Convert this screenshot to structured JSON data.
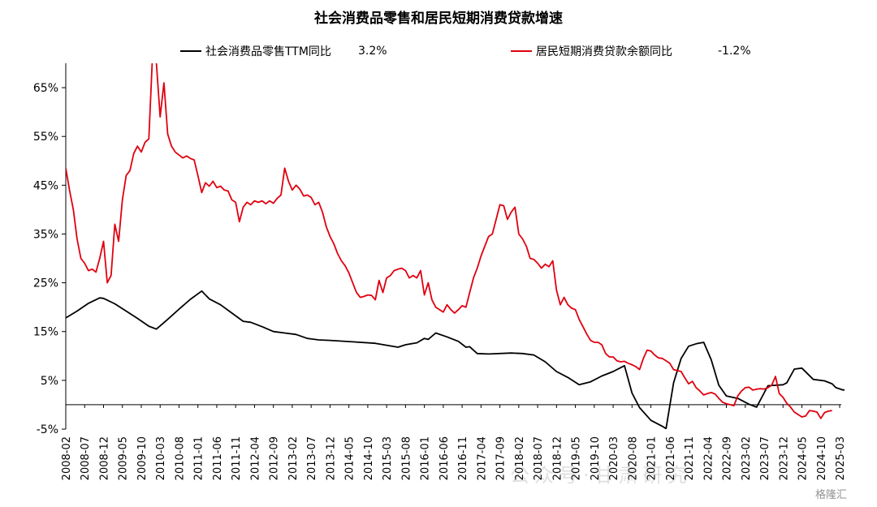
{
  "chart_data": {
    "type": "line",
    "title": "社会消费品零售和居民短期消费贷款增速",
    "ylim": [
      -5,
      70
    ],
    "y_ticks": [
      "-5%",
      "5%",
      "15%",
      "25%",
      "35%",
      "45%",
      "55%",
      "65%"
    ],
    "y_tick_values": [
      -5,
      5,
      15,
      25,
      35,
      45,
      55,
      65
    ],
    "x_ticks": [
      "2008-02",
      "2008-07",
      "2008-12",
      "2009-05",
      "2009-10",
      "2010-03",
      "2010-08",
      "2011-01",
      "2011-06",
      "2011-11",
      "2012-04",
      "2012-09",
      "2013-02",
      "2013-07",
      "2013-12",
      "2014-05",
      "2014-10",
      "2015-03",
      "2015-08",
      "2016-01",
      "2016-06",
      "2016-11",
      "2017-04",
      "2017-09",
      "2018-02",
      "2018-07",
      "2018-12",
      "2019-05",
      "2019-10",
      "2020-03",
      "2020-08",
      "2021-01",
      "2021-06",
      "2021-11",
      "2022-04",
      "2022-09",
      "2023-02",
      "2023-07",
      "2023-12",
      "2024-05",
      "2024-10",
      "2025-03"
    ],
    "x_start": "2008-02",
    "x_end": "2025-03",
    "legend_position": "top",
    "series": [
      {
        "name": "社会消费品零售TTM同比",
        "color": "#000000",
        "latest_label": "3.2%",
        "points": [
          [
            "2008-02",
            17.8
          ],
          [
            "2008-05",
            19.2
          ],
          [
            "2008-08",
            20.8
          ],
          [
            "2008-11",
            21.9
          ],
          [
            "2008-12",
            21.8
          ],
          [
            "2009-03",
            20.7
          ],
          [
            "2009-06",
            19.2
          ],
          [
            "2009-09",
            17.7
          ],
          [
            "2009-12",
            16.1
          ],
          [
            "2010-02",
            15.5
          ],
          [
            "2010-05",
            17.5
          ],
          [
            "2010-08",
            19.6
          ],
          [
            "2010-11",
            21.6
          ],
          [
            "2011-02",
            23.3
          ],
          [
            "2011-04",
            21.7
          ],
          [
            "2011-07",
            20.5
          ],
          [
            "2011-10",
            18.8
          ],
          [
            "2012-01",
            17.1
          ],
          [
            "2012-03",
            16.9
          ],
          [
            "2012-06",
            16.0
          ],
          [
            "2012-09",
            15.0
          ],
          [
            "2012-12",
            14.7
          ],
          [
            "2013-03",
            14.4
          ],
          [
            "2013-06",
            13.6
          ],
          [
            "2013-09",
            13.3
          ],
          [
            "2013-12",
            13.2
          ],
          [
            "2014-06",
            12.9
          ],
          [
            "2014-12",
            12.6
          ],
          [
            "2015-06",
            11.8
          ],
          [
            "2015-08",
            12.3
          ],
          [
            "2015-11",
            12.7
          ],
          [
            "2016-01",
            13.6
          ],
          [
            "2016-02",
            13.4
          ],
          [
            "2016-04",
            14.7
          ],
          [
            "2016-07",
            13.9
          ],
          [
            "2016-10",
            13.0
          ],
          [
            "2016-12",
            11.8
          ],
          [
            "2017-01",
            11.9
          ],
          [
            "2017-03",
            10.5
          ],
          [
            "2017-06",
            10.4
          ],
          [
            "2017-12",
            10.6
          ],
          [
            "2018-03",
            10.5
          ],
          [
            "2018-06",
            10.2
          ],
          [
            "2018-09",
            8.8
          ],
          [
            "2018-12",
            6.8
          ],
          [
            "2019-03",
            5.6
          ],
          [
            "2019-06",
            4.1
          ],
          [
            "2019-09",
            4.7
          ],
          [
            "2019-12",
            5.9
          ],
          [
            "2020-03",
            6.8
          ],
          [
            "2020-06",
            8.0
          ],
          [
            "2020-08",
            2.4
          ],
          [
            "2020-10",
            -0.6
          ],
          [
            "2021-01",
            -3.2
          ],
          [
            "2021-04",
            -4.4
          ],
          [
            "2021-05",
            -4.9
          ],
          [
            "2021-07",
            4.5
          ],
          [
            "2021-09",
            9.5
          ],
          [
            "2021-11",
            12.0
          ],
          [
            "2022-01",
            12.5
          ],
          [
            "2022-03",
            12.8
          ],
          [
            "2022-05",
            9.2
          ],
          [
            "2022-07",
            4.0
          ],
          [
            "2022-09",
            1.8
          ],
          [
            "2022-12",
            1.3
          ],
          [
            "2023-03",
            0.1
          ],
          [
            "2023-05",
            -0.5
          ],
          [
            "2023-08",
            3.9
          ],
          [
            "2023-12",
            4.1
          ],
          [
            "2024-01",
            4.5
          ],
          [
            "2024-03",
            7.3
          ],
          [
            "2024-05",
            7.5
          ],
          [
            "2024-08",
            5.2
          ],
          [
            "2024-11",
            4.9
          ],
          [
            "2025-01",
            4.3
          ],
          [
            "2025-02",
            3.5
          ],
          [
            "2025-04",
            3.0
          ],
          [
            "2025-05",
            3.2
          ]
        ]
      },
      {
        "name": "居民短期消费贷款余额同比",
        "color": "#e0000f",
        "latest_label": "-1.2%",
        "points": [
          [
            "2008-02",
            48.5
          ],
          [
            "2008-03",
            44.0
          ],
          [
            "2008-04",
            40.0
          ],
          [
            "2008-05",
            34.0
          ],
          [
            "2008-06",
            30.0
          ],
          [
            "2008-07",
            29.0
          ],
          [
            "2008-08",
            27.5
          ],
          [
            "2008-09",
            27.8
          ],
          [
            "2008-10",
            27.2
          ],
          [
            "2008-11",
            30.0
          ],
          [
            "2008-12",
            33.5
          ],
          [
            "2009-01",
            25.0
          ],
          [
            "2009-02",
            26.5
          ],
          [
            "2009-03",
            37.0
          ],
          [
            "2009-04",
            33.5
          ],
          [
            "2009-05",
            42.0
          ],
          [
            "2009-06",
            47.0
          ],
          [
            "2009-07",
            48.0
          ],
          [
            "2009-08",
            51.5
          ],
          [
            "2009-09",
            53.0
          ],
          [
            "2009-10",
            51.8
          ],
          [
            "2009-11",
            53.8
          ],
          [
            "2009-12",
            54.5
          ],
          [
            "2010-01",
            72.0
          ],
          [
            "2010-02",
            70.0
          ],
          [
            "2010-03",
            59.0
          ],
          [
            "2010-04",
            66.0
          ],
          [
            "2010-05",
            55.5
          ],
          [
            "2010-06",
            53.0
          ],
          [
            "2010-07",
            51.8
          ],
          [
            "2010-08",
            51.2
          ],
          [
            "2010-09",
            50.6
          ],
          [
            "2010-10",
            51.0
          ],
          [
            "2010-11",
            50.5
          ],
          [
            "2010-12",
            50.2
          ],
          [
            "2011-01",
            47.0
          ],
          [
            "2011-02",
            43.5
          ],
          [
            "2011-03",
            45.5
          ],
          [
            "2011-04",
            44.8
          ],
          [
            "2011-05",
            45.8
          ],
          [
            "2011-06",
            44.5
          ],
          [
            "2011-07",
            44.8
          ],
          [
            "2011-08",
            44.0
          ],
          [
            "2011-09",
            43.8
          ],
          [
            "2011-10",
            42.0
          ],
          [
            "2011-11",
            41.5
          ],
          [
            "2011-12",
            37.5
          ],
          [
            "2012-01",
            40.5
          ],
          [
            "2012-02",
            41.5
          ],
          [
            "2012-03",
            41.0
          ],
          [
            "2012-04",
            41.8
          ],
          [
            "2012-05",
            41.5
          ],
          [
            "2012-06",
            41.8
          ],
          [
            "2012-07",
            41.2
          ],
          [
            "2012-08",
            41.8
          ],
          [
            "2012-09",
            41.3
          ],
          [
            "2012-10",
            42.3
          ],
          [
            "2012-11",
            43.0
          ],
          [
            "2012-12",
            48.5
          ],
          [
            "2013-01",
            45.8
          ],
          [
            "2013-02",
            44.0
          ],
          [
            "2013-03",
            45.0
          ],
          [
            "2013-04",
            44.2
          ],
          [
            "2013-05",
            42.8
          ],
          [
            "2013-06",
            43.0
          ],
          [
            "2013-07",
            42.5
          ],
          [
            "2013-08",
            41.0
          ],
          [
            "2013-09",
            41.5
          ],
          [
            "2013-10",
            39.5
          ],
          [
            "2013-11",
            36.5
          ],
          [
            "2013-12",
            34.5
          ],
          [
            "2014-01",
            33.0
          ],
          [
            "2014-02",
            31.0
          ],
          [
            "2014-03",
            29.5
          ],
          [
            "2014-04",
            28.5
          ],
          [
            "2014-05",
            27.0
          ],
          [
            "2014-06",
            25.0
          ],
          [
            "2014-07",
            23.0
          ],
          [
            "2014-08",
            22.0
          ],
          [
            "2014-09",
            22.2
          ],
          [
            "2014-10",
            22.5
          ],
          [
            "2014-11",
            22.4
          ],
          [
            "2014-12",
            21.5
          ],
          [
            "2015-01",
            25.5
          ],
          [
            "2015-02",
            23.0
          ],
          [
            "2015-03",
            26.0
          ],
          [
            "2015-04",
            26.5
          ],
          [
            "2015-05",
            27.5
          ],
          [
            "2015-06",
            27.8
          ],
          [
            "2015-07",
            28.0
          ],
          [
            "2015-08",
            27.5
          ],
          [
            "2015-09",
            26.0
          ],
          [
            "2015-10",
            26.5
          ],
          [
            "2015-11",
            26.0
          ],
          [
            "2015-12",
            27.5
          ],
          [
            "2016-01",
            22.5
          ],
          [
            "2016-02",
            25.0
          ],
          [
            "2016-03",
            21.5
          ],
          [
            "2016-04",
            20.0
          ],
          [
            "2016-05",
            19.5
          ],
          [
            "2016-06",
            19.0
          ],
          [
            "2016-07",
            20.5
          ],
          [
            "2016-08",
            19.5
          ],
          [
            "2016-09",
            18.8
          ],
          [
            "2016-10",
            19.5
          ],
          [
            "2016-11",
            20.3
          ],
          [
            "2016-12",
            20.0
          ],
          [
            "2017-01",
            23.0
          ],
          [
            "2017-02",
            26.0
          ],
          [
            "2017-03",
            28.0
          ],
          [
            "2017-04",
            30.5
          ],
          [
            "2017-05",
            32.5
          ],
          [
            "2017-06",
            34.5
          ],
          [
            "2017-07",
            35.0
          ],
          [
            "2017-08",
            38.0
          ],
          [
            "2017-09",
            41.0
          ],
          [
            "2017-10",
            40.8
          ],
          [
            "2017-11",
            38.0
          ],
          [
            "2017-12",
            39.5
          ],
          [
            "2018-01",
            40.5
          ],
          [
            "2018-02",
            35.0
          ],
          [
            "2018-03",
            34.0
          ],
          [
            "2018-04",
            32.5
          ],
          [
            "2018-05",
            30.0
          ],
          [
            "2018-06",
            29.8
          ],
          [
            "2018-07",
            29.0
          ],
          [
            "2018-08",
            28.0
          ],
          [
            "2018-09",
            28.8
          ],
          [
            "2018-10",
            28.3
          ],
          [
            "2018-11",
            29.5
          ],
          [
            "2018-12",
            23.5
          ],
          [
            "2019-01",
            20.5
          ],
          [
            "2019-02",
            22.0
          ],
          [
            "2019-03",
            20.5
          ],
          [
            "2019-04",
            19.8
          ],
          [
            "2019-05",
            19.5
          ],
          [
            "2019-06",
            17.5
          ],
          [
            "2019-07",
            16.0
          ],
          [
            "2019-08",
            14.5
          ],
          [
            "2019-09",
            13.2
          ],
          [
            "2019-10",
            12.8
          ],
          [
            "2019-11",
            12.8
          ],
          [
            "2019-12",
            12.3
          ],
          [
            "2020-01",
            10.5
          ],
          [
            "2020-02",
            9.8
          ],
          [
            "2020-03",
            9.8
          ],
          [
            "2020-04",
            9.0
          ],
          [
            "2020-05",
            8.8
          ],
          [
            "2020-06",
            8.9
          ],
          [
            "2020-07",
            8.5
          ],
          [
            "2020-08",
            8.2
          ],
          [
            "2020-09",
            7.8
          ],
          [
            "2020-10",
            7.2
          ],
          [
            "2020-11",
            9.5
          ],
          [
            "2020-12",
            11.2
          ],
          [
            "2021-01",
            11.0
          ],
          [
            "2021-02",
            10.2
          ],
          [
            "2021-03",
            9.6
          ],
          [
            "2021-04",
            9.5
          ],
          [
            "2021-05",
            9.0
          ],
          [
            "2021-06",
            8.5
          ],
          [
            "2021-07",
            7.2
          ],
          [
            "2021-08",
            7.0
          ],
          [
            "2021-09",
            6.8
          ],
          [
            "2021-10",
            5.5
          ],
          [
            "2021-11",
            4.3
          ],
          [
            "2021-12",
            4.8
          ],
          [
            "2022-01",
            3.5
          ],
          [
            "2022-02",
            2.8
          ],
          [
            "2022-03",
            2.0
          ],
          [
            "2022-04",
            2.3
          ],
          [
            "2022-05",
            2.5
          ],
          [
            "2022-06",
            2.2
          ],
          [
            "2022-07",
            1.3
          ],
          [
            "2022-08",
            0.5
          ],
          [
            "2022-09",
            0.2
          ],
          [
            "2022-10",
            0.0
          ],
          [
            "2022-11",
            -0.2
          ],
          [
            "2022-12",
            1.8
          ],
          [
            "2023-01",
            2.8
          ],
          [
            "2023-02",
            3.5
          ],
          [
            "2023-03",
            3.6
          ],
          [
            "2023-04",
            3.0
          ],
          [
            "2023-05",
            3.2
          ],
          [
            "2023-06",
            3.3
          ],
          [
            "2023-07",
            3.2
          ],
          [
            "2023-08",
            3.5
          ],
          [
            "2023-09",
            4.0
          ],
          [
            "2023-10",
            5.8
          ],
          [
            "2023-11",
            2.3
          ],
          [
            "2023-12",
            1.5
          ],
          [
            "2024-01",
            0.3
          ],
          [
            "2024-02",
            -0.5
          ],
          [
            "2024-03",
            -1.5
          ],
          [
            "2024-04",
            -2.0
          ],
          [
            "2024-05",
            -2.5
          ],
          [
            "2024-06",
            -2.3
          ],
          [
            "2024-07",
            -1.2
          ],
          [
            "2024-08",
            -1.3
          ],
          [
            "2024-09",
            -1.5
          ],
          [
            "2024-10",
            -2.8
          ],
          [
            "2024-11",
            -1.6
          ],
          [
            "2024-12",
            -1.3
          ],
          [
            "2025-01",
            -1.2
          ]
        ]
      }
    ]
  },
  "watermark": {
    "text": "公众号·甘肃研究",
    "badge": "格隆汇"
  }
}
